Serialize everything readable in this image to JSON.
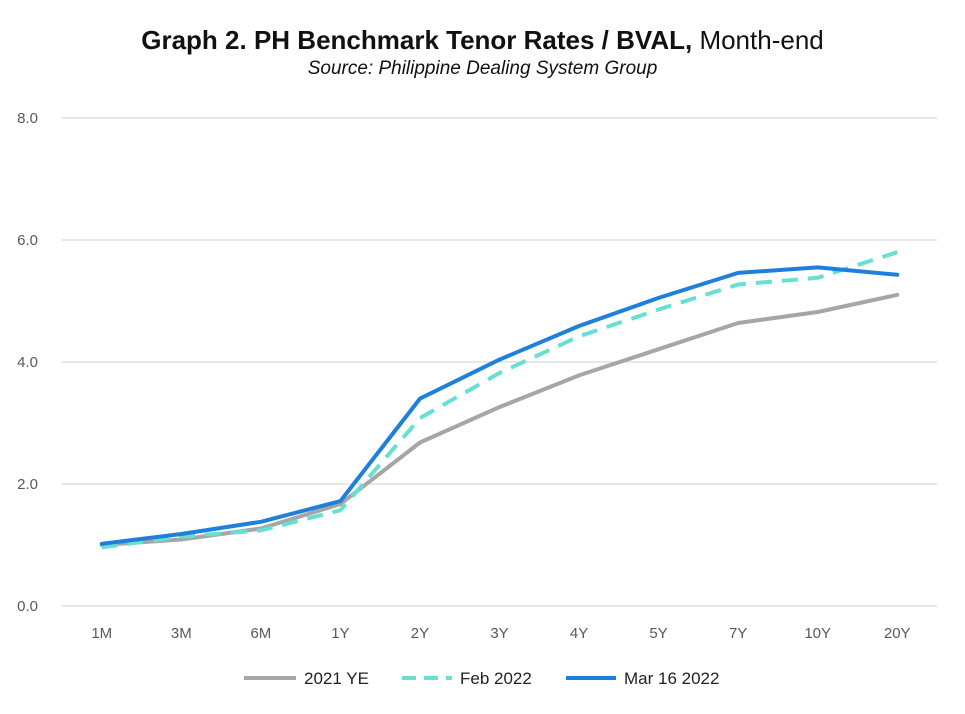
{
  "chart_data": {
    "type": "line",
    "title": "Graph 2. PH Benchmark Tenor Rates / BVAL,",
    "title_suffix": "Month-end",
    "subtitle": "Source: Philippine Dealing System Group",
    "xlabel": "",
    "ylabel": "",
    "categories": [
      "1M",
      "3M",
      "6M",
      "1Y",
      "2Y",
      "3Y",
      "4Y",
      "5Y",
      "7Y",
      "10Y",
      "20Y"
    ],
    "ylim": [
      0,
      8
    ],
    "yticks": [
      0,
      2,
      4,
      6,
      8
    ],
    "ytick_labels": [
      "0.0",
      "2.0",
      "4.0",
      "6.0",
      "8.0"
    ],
    "grid": true,
    "legend_position": "bottom",
    "series": [
      {
        "name": "2021 YE",
        "color": "#a6a6a6",
        "style": "solid",
        "values": [
          1.0,
          1.09,
          1.27,
          1.67,
          2.68,
          3.26,
          3.78,
          4.21,
          4.64,
          4.82,
          5.1
        ]
      },
      {
        "name": "Feb 2022",
        "color": "#66e0d0",
        "style": "dashed",
        "values": [
          0.96,
          1.14,
          1.24,
          1.57,
          3.08,
          3.82,
          4.42,
          4.86,
          5.27,
          5.38,
          5.8
        ]
      },
      {
        "name": "Mar 16 2022",
        "color": "#1f80dc",
        "style": "solid",
        "values": [
          1.02,
          1.18,
          1.38,
          1.72,
          3.4,
          4.04,
          4.59,
          5.05,
          5.46,
          5.55,
          5.43
        ]
      }
    ]
  }
}
